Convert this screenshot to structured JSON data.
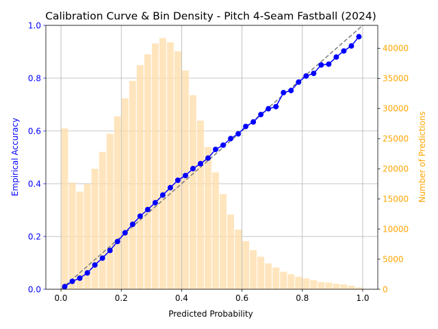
{
  "chart_data": {
    "type": "bar+line",
    "title": "Calibration Curve & Bin Density - Pitch 4-Seam Fastball (2024)",
    "xlabel": "Predicted Probability",
    "ylabel_left": "Empirical Accuracy",
    "ylabel_right": "Number of Predictions",
    "xlim": [
      -0.05,
      1.05
    ],
    "ylim_left": [
      0,
      1
    ],
    "ylim_right": [
      0,
      43800
    ],
    "x_ticks": [
      0.0,
      0.2,
      0.4,
      0.6,
      0.8,
      1.0
    ],
    "x_tick_labels": [
      "0.0",
      "0.2",
      "0.4",
      "0.6",
      "0.8",
      "1.0"
    ],
    "y_left_ticks": [
      0.0,
      0.2,
      0.4,
      0.6,
      0.8,
      1.0
    ],
    "y_left_tick_labels": [
      "0.0",
      "0.2",
      "0.4",
      "0.6",
      "0.8",
      "1.0"
    ],
    "y_right_ticks": [
      0,
      5000,
      10000,
      15000,
      20000,
      25000,
      30000,
      35000,
      40000
    ],
    "y_right_tick_labels": [
      "0",
      "5000",
      "10000",
      "15000",
      "20000",
      "25000",
      "30000",
      "35000",
      "40000"
    ],
    "grid": true,
    "reference_line": {
      "x": [
        0,
        1
      ],
      "y": [
        0,
        1
      ],
      "style": "dashed"
    },
    "bin_width": 0.025,
    "bins": {
      "x": [
        0.0125,
        0.0375,
        0.0625,
        0.0875,
        0.1125,
        0.1375,
        0.1625,
        0.1875,
        0.2125,
        0.2375,
        0.2625,
        0.2875,
        0.3125,
        0.3375,
        0.3625,
        0.3875,
        0.4125,
        0.4375,
        0.4625,
        0.4875,
        0.5125,
        0.5375,
        0.5625,
        0.5875,
        0.6125,
        0.6375,
        0.6625,
        0.6875,
        0.7125,
        0.7375,
        0.7625,
        0.7875,
        0.8125,
        0.8375,
        0.8625,
        0.8875,
        0.9125,
        0.9375,
        0.9625,
        0.9875
      ],
      "counts": [
        26700,
        17700,
        16200,
        17500,
        20000,
        22800,
        25800,
        28700,
        31700,
        34600,
        37200,
        39000,
        40800,
        41700,
        41000,
        39500,
        36300,
        32200,
        28000,
        23600,
        19400,
        15800,
        12400,
        9900,
        8000,
        6500,
        5400,
        4300,
        3600,
        2900,
        2500,
        2100,
        1800,
        1500,
        1200,
        1100,
        900,
        800,
        600,
        300
      ]
    },
    "series": [
      {
        "name": "",
        "x": [
          0.0125,
          0.0375,
          0.0625,
          0.0875,
          0.1125,
          0.1375,
          0.1625,
          0.1875,
          0.2125,
          0.2375,
          0.2625,
          0.2875,
          0.3125,
          0.3375,
          0.3625,
          0.3875,
          0.4125,
          0.4375,
          0.4625,
          0.4875,
          0.5125,
          0.5375,
          0.5625,
          0.5875,
          0.6125,
          0.6375,
          0.6625,
          0.6875,
          0.7125,
          0.7375,
          0.7625,
          0.7875,
          0.8125,
          0.8375,
          0.8625,
          0.8875,
          0.9125,
          0.9375,
          0.9625,
          0.9875
        ],
        "y": [
          0.01,
          0.03,
          0.042,
          0.062,
          0.092,
          0.118,
          0.147,
          0.181,
          0.214,
          0.246,
          0.277,
          0.302,
          0.328,
          0.357,
          0.385,
          0.413,
          0.431,
          0.457,
          0.476,
          0.497,
          0.53,
          0.546,
          0.571,
          0.589,
          0.617,
          0.634,
          0.662,
          0.684,
          0.692,
          0.745,
          0.753,
          0.785,
          0.808,
          0.818,
          0.85,
          0.853,
          0.88,
          0.903,
          0.922,
          0.957
        ]
      }
    ],
    "colors": {
      "line": "#0000ff",
      "bars": "#ffdead",
      "reference": "#808080",
      "left_axis_text": "#0000ff",
      "right_axis_text": "#ffa500",
      "grid": "#b0b0b0"
    }
  }
}
